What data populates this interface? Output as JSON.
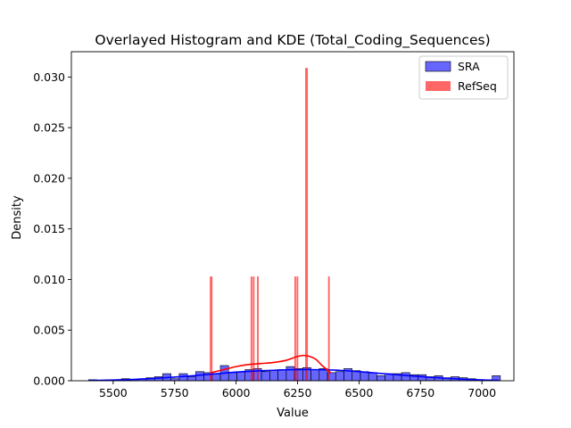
{
  "chart_data": {
    "type": "histogram",
    "title": "Overlayed Histogram and KDE (Total_Coding_Sequences)",
    "xlabel": "Value",
    "ylabel": "Density",
    "xlim": [
      5330,
      7130
    ],
    "ylim": [
      0,
      0.0325
    ],
    "xticks": [
      5500,
      5750,
      6000,
      6250,
      6500,
      6750,
      7000
    ],
    "yticks": [
      0.0,
      0.005,
      0.01,
      0.015,
      0.02,
      0.025,
      0.03
    ],
    "ytick_labels": [
      "0.000",
      "0.005",
      "0.010",
      "0.015",
      "0.020",
      "0.025",
      "0.030"
    ],
    "legend_position": "top-right",
    "series": [
      {
        "name": "SRA",
        "color": "#0000ff",
        "fill_alpha": 0.6,
        "bin_start": 5400,
        "bin_width": 33.5,
        "densities": [
          0.0001,
          5e-05,
          0.0001,
          0.0001,
          0.0002,
          0.00015,
          0.0002,
          0.0003,
          0.0004,
          0.0007,
          0.0002,
          0.0007,
          0.0004,
          0.0009,
          0.0008,
          0.0007,
          0.0015,
          0.0008,
          0.0009,
          0.0011,
          0.0012,
          0.0009,
          0.001,
          0.0011,
          0.0014,
          0.0012,
          0.0013,
          0.0011,
          0.0012,
          0.0008,
          0.0009,
          0.0012,
          0.001,
          0.0009,
          0.0008,
          0.0005,
          0.0007,
          0.0007,
          0.0008,
          0.0006,
          0.0006,
          0.0004,
          0.0005,
          0.0003,
          0.0004,
          0.0003,
          0.0002,
          0.0001,
          0.0001,
          0.0005
        ],
        "kde_x": [
          5400,
          5500,
          5600,
          5700,
          5800,
          5900,
          6000,
          6100,
          6200,
          6300,
          6400,
          6500,
          6600,
          6700,
          6800,
          6900,
          7000,
          7070
        ],
        "kde_y": [
          2e-05,
          7e-05,
          0.00015,
          0.00028,
          0.00045,
          0.00065,
          0.00085,
          0.00098,
          0.00108,
          0.0011,
          0.00105,
          0.0009,
          0.0007,
          0.0005,
          0.00032,
          0.00018,
          8e-05,
          4e-05
        ]
      },
      {
        "name": "RefSeq",
        "color": "#ff0000",
        "fill_alpha": 0.6,
        "bins": [
          {
            "x0": 5893,
            "x1": 5904,
            "density": 0.0103
          },
          {
            "x0": 6059,
            "x1": 6066,
            "density": 0.0103
          },
          {
            "x0": 6068,
            "x1": 6075,
            "density": 0.0103
          },
          {
            "x0": 6085,
            "x1": 6092,
            "density": 0.0103
          },
          {
            "x0": 6237,
            "x1": 6244,
            "density": 0.0103
          },
          {
            "x0": 6246,
            "x1": 6253,
            "density": 0.0103
          },
          {
            "x0": 6281,
            "x1": 6292,
            "density": 0.0309
          },
          {
            "x0": 6374,
            "x1": 6381,
            "density": 0.0103
          }
        ],
        "kde_x": [
          5900,
          5950,
          6000,
          6050,
          6100,
          6150,
          6200,
          6250,
          6275,
          6300,
          6325,
          6350,
          6385
        ],
        "kde_y": [
          0.0008,
          0.0011,
          0.0014,
          0.0016,
          0.0017,
          0.0018,
          0.002,
          0.0024,
          0.0025,
          0.0024,
          0.0021,
          0.0015,
          0.0008
        ]
      }
    ]
  }
}
